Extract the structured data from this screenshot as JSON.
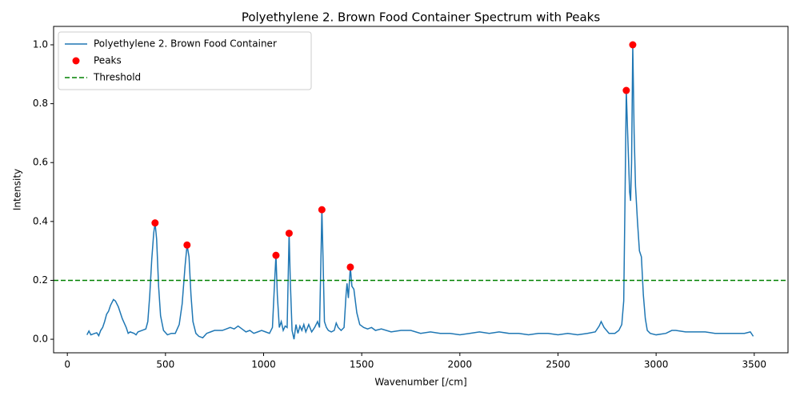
{
  "chart_data": {
    "type": "line",
    "title": "Polyethylene 2. Brown Food Container Spectrum with Peaks",
    "xlabel": "Wavenumber [/cm]",
    "ylabel": "Intensity",
    "xlim": [
      -70,
      3672
    ],
    "ylim": [
      -0.046,
      1.0625
    ],
    "xticks": [
      0,
      500,
      1000,
      1500,
      2000,
      2500,
      3000,
      3500
    ],
    "yticks": [
      {
        "value": 0,
        "label": "0.0"
      },
      {
        "value": 0.2,
        "label": "0.2"
      },
      {
        "value": 0.4,
        "label": "0.4"
      },
      {
        "value": 0.6,
        "label": "0.6"
      },
      {
        "value": 0.8,
        "label": "0.8"
      },
      {
        "value": 1,
        "label": "1.0"
      }
    ],
    "legend": "upper left",
    "series": [
      {
        "name": "Polyethylene 2. Brown Food Container",
        "type": "line",
        "color": "#1f77b4",
        "x": [
          100,
          110,
          120,
          140,
          150,
          160,
          170,
          180,
          190,
          200,
          210,
          220,
          235,
          245,
          260,
          280,
          300,
          310,
          320,
          340,
          350,
          360,
          380,
          400,
          410,
          420,
          430,
          440,
          447,
          455,
          465,
          475,
          490,
          510,
          530,
          550,
          570,
          585,
          600,
          610,
          620,
          630,
          640,
          655,
          670,
          690,
          710,
          730,
          750,
          770,
          790,
          810,
          830,
          850,
          870,
          890,
          910,
          930,
          950,
          970,
          990,
          1010,
          1030,
          1045,
          1055,
          1063,
          1070,
          1080,
          1090,
          1100,
          1110,
          1120,
          1125,
          1130,
          1136,
          1145,
          1155,
          1165,
          1175,
          1185,
          1195,
          1205,
          1215,
          1230,
          1245,
          1260,
          1275,
          1285,
          1293,
          1297,
          1302,
          1310,
          1320,
          1330,
          1345,
          1360,
          1370,
          1380,
          1395,
          1410,
          1420,
          1425,
          1432,
          1442,
          1450,
          1460,
          1475,
          1490,
          1510,
          1530,
          1550,
          1570,
          1600,
          1650,
          1700,
          1750,
          1800,
          1850,
          1900,
          1950,
          2000,
          2050,
          2100,
          2150,
          2200,
          2250,
          2300,
          2350,
          2400,
          2450,
          2500,
          2550,
          2600,
          2650,
          2690,
          2710,
          2720,
          2735,
          2760,
          2790,
          2810,
          2825,
          2835,
          2842,
          2848,
          2855,
          2865,
          2870,
          2875,
          2881,
          2888,
          2895,
          2905,
          2915,
          2925,
          2935,
          2945,
          2955,
          2970,
          3000,
          3050,
          3080,
          3100,
          3150,
          3200,
          3250,
          3300,
          3350,
          3400,
          3450,
          3480,
          3495
        ],
        "values": [
          0.015,
          0.028,
          0.015,
          0.02,
          0.022,
          0.012,
          0.03,
          0.04,
          0.06,
          0.085,
          0.095,
          0.115,
          0.135,
          0.13,
          0.11,
          0.07,
          0.04,
          0.02,
          0.025,
          0.02,
          0.015,
          0.025,
          0.03,
          0.035,
          0.06,
          0.15,
          0.27,
          0.36,
          0.395,
          0.34,
          0.18,
          0.08,
          0.03,
          0.015,
          0.02,
          0.02,
          0.05,
          0.12,
          0.25,
          0.32,
          0.28,
          0.15,
          0.06,
          0.02,
          0.01,
          0.005,
          0.02,
          0.025,
          0.03,
          0.03,
          0.03,
          0.035,
          0.04,
          0.035,
          0.045,
          0.035,
          0.025,
          0.03,
          0.02,
          0.025,
          0.03,
          0.025,
          0.02,
          0.04,
          0.18,
          0.285,
          0.15,
          0.04,
          0.06,
          0.03,
          0.045,
          0.04,
          0.2,
          0.36,
          0.2,
          0.03,
          0.0,
          0.05,
          0.02,
          0.045,
          0.03,
          0.05,
          0.025,
          0.05,
          0.025,
          0.04,
          0.06,
          0.04,
          0.3,
          0.44,
          0.3,
          0.06,
          0.04,
          0.03,
          0.025,
          0.03,
          0.055,
          0.04,
          0.03,
          0.04,
          0.15,
          0.19,
          0.14,
          0.245,
          0.18,
          0.17,
          0.09,
          0.05,
          0.04,
          0.035,
          0.04,
          0.03,
          0.035,
          0.025,
          0.03,
          0.03,
          0.02,
          0.025,
          0.02,
          0.02,
          0.015,
          0.02,
          0.025,
          0.02,
          0.025,
          0.02,
          0.02,
          0.015,
          0.02,
          0.02,
          0.015,
          0.02,
          0.015,
          0.02,
          0.025,
          0.045,
          0.06,
          0.04,
          0.02,
          0.02,
          0.03,
          0.05,
          0.13,
          0.5,
          0.845,
          0.7,
          0.5,
          0.47,
          0.6,
          1.0,
          0.7,
          0.52,
          0.4,
          0.3,
          0.28,
          0.15,
          0.07,
          0.03,
          0.02,
          0.015,
          0.02,
          0.03,
          0.03,
          0.025,
          0.025,
          0.025,
          0.02,
          0.02,
          0.02,
          0.02,
          0.025,
          0.01
        ]
      },
      {
        "name": "Peaks",
        "type": "scatter",
        "color": "#ff0000",
        "x": [
          447,
          610,
          1063,
          1130,
          1297,
          1442,
          2848,
          2881
        ],
        "values": [
          0.395,
          0.32,
          0.285,
          0.36,
          0.44,
          0.245,
          0.845,
          1.0
        ]
      }
    ],
    "threshold": {
      "name": "Threshold",
      "value": 0.2,
      "color": "#008000"
    }
  }
}
